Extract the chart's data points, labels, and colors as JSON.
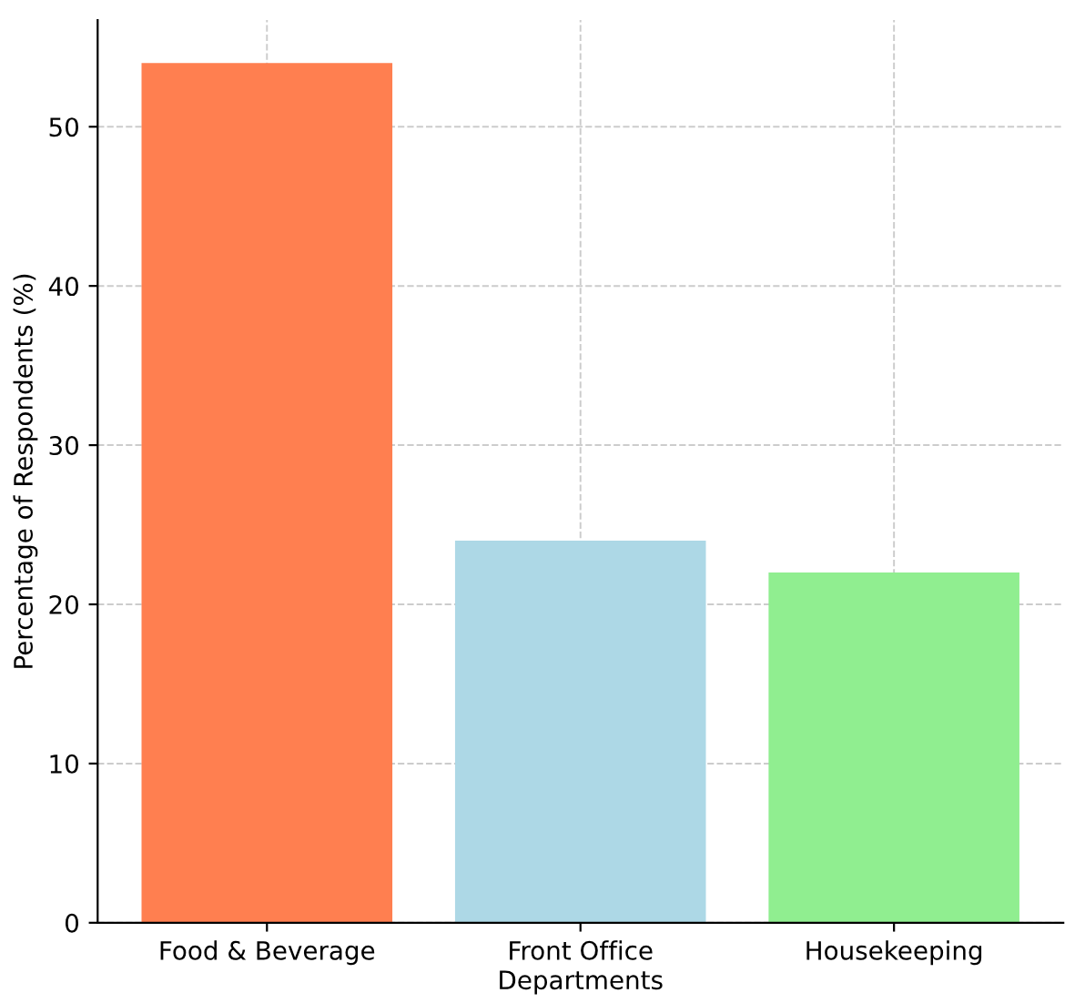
{
  "chart_data": {
    "type": "bar",
    "categories": [
      "Food & Beverage",
      "Front Office",
      "Housekeeping"
    ],
    "values": [
      54,
      24,
      22
    ],
    "colors": [
      "#ff7f50",
      "#add8e6",
      "#90ee90"
    ],
    "xlabel": "Departments",
    "ylabel": "Percentage of Respondents (%)",
    "ylim": [
      0,
      56.7
    ],
    "yticks": [
      0,
      10,
      20,
      30,
      40,
      50
    ],
    "grid": true
  }
}
